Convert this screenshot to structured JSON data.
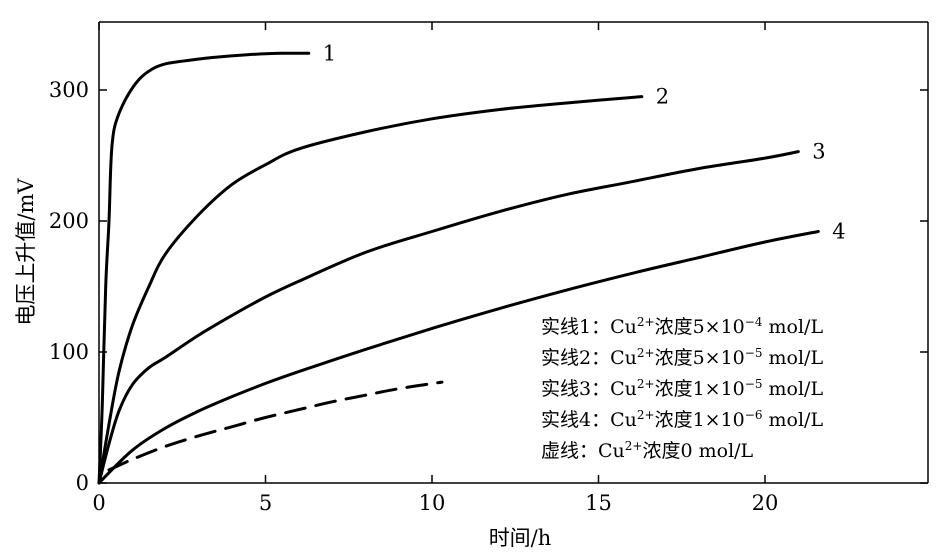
{
  "chart_data": {
    "type": "line",
    "xlabel": "时间/h",
    "ylabel": "电压上升值/mV",
    "xlim": [
      0,
      25
    ],
    "ylim": [
      0,
      350
    ],
    "xticks": [
      0,
      5,
      10,
      15,
      20
    ],
    "yticks": [
      0,
      100,
      200,
      300
    ],
    "grid": false,
    "legend_position": "bottom-right",
    "legend": [
      {
        "prefix": "实线1：Cu",
        "sup": "2+",
        "mid": "浓度5×10",
        "exp": "−4",
        "unit": " mol/L"
      },
      {
        "prefix": "实线2：Cu",
        "sup": "2+",
        "mid": "浓度5×10",
        "exp": "−5",
        "unit": " mol/L"
      },
      {
        "prefix": "实线3：Cu",
        "sup": "2+",
        "mid": "浓度1×10",
        "exp": "−5",
        "unit": " mol/L"
      },
      {
        "prefix": "实线4：Cu",
        "sup": "2+",
        "mid": "浓度1×10",
        "exp": "−6",
        "unit": " mol/L"
      },
      {
        "prefix": "虚线：Cu",
        "sup": "2+",
        "mid": "浓度0 mol/L",
        "exp": "",
        "unit": ""
      }
    ],
    "series": [
      {
        "label": "1",
        "style": "solid",
        "x": [
          0,
          0.1,
          0.2,
          0.3,
          0.35,
          0.4,
          0.5,
          0.8,
          1.2,
          1.6,
          2.0,
          2.5,
          3.5,
          4.5,
          5.5,
          6.3
        ],
        "y": [
          0,
          60,
          150,
          200,
          240,
          260,
          275,
          293,
          308,
          316,
          320,
          322,
          325,
          327,
          328,
          328
        ]
      },
      {
        "label": "2",
        "style": "solid",
        "x": [
          0,
          0.3,
          0.6,
          1,
          1.5,
          2,
          3,
          4,
          5,
          6,
          8,
          10,
          12,
          14,
          16.3
        ],
        "y": [
          0,
          45,
          85,
          120,
          150,
          175,
          205,
          228,
          243,
          255,
          268,
          278,
          285,
          290,
          295
        ]
      },
      {
        "label": "3",
        "style": "solid",
        "x": [
          0,
          0.3,
          0.6,
          1,
          1.5,
          2,
          3,
          4,
          5,
          6,
          8,
          10,
          12,
          14,
          16,
          18,
          20,
          21
        ],
        "y": [
          0,
          30,
          55,
          75,
          88,
          96,
          113,
          128,
          142,
          154,
          176,
          192,
          207,
          220,
          230,
          240,
          248,
          253
        ]
      },
      {
        "label": "4",
        "style": "solid",
        "x": [
          0,
          1,
          2,
          3,
          4,
          5,
          6,
          8,
          10,
          12,
          14,
          16,
          18,
          20,
          21.6
        ],
        "y": [
          0,
          25,
          42,
          55,
          66,
          76,
          85,
          102,
          118,
          133,
          147,
          160,
          172,
          184,
          192
        ]
      },
      {
        "label": "",
        "style": "dashed",
        "x": [
          0.3,
          1,
          2,
          3,
          4,
          5,
          6,
          7,
          8,
          9,
          10.3
        ],
        "y": [
          10,
          18,
          28,
          36,
          43,
          50,
          56,
          62,
          67,
          72,
          77
        ]
      }
    ]
  }
}
